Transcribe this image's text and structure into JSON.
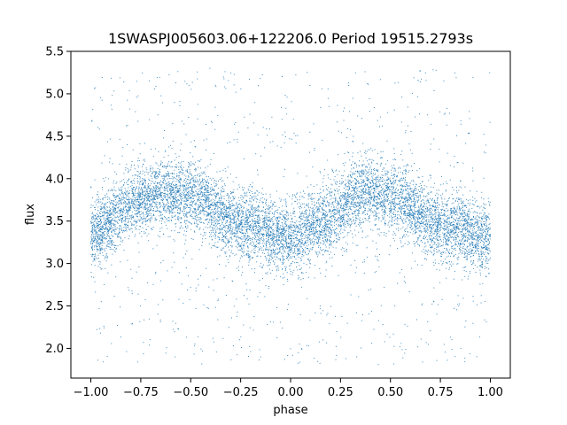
{
  "chart_data": {
    "type": "scatter",
    "title": "1SWASPJ005603.06+122206.0 Period 19515.2793s",
    "xlabel": "phase",
    "ylabel": "flux",
    "xlim": [
      -1.1,
      1.1
    ],
    "ylim": [
      1.65,
      5.5
    ],
    "x_ticks": [
      -1.0,
      -0.75,
      -0.5,
      -0.25,
      0.0,
      0.25,
      0.5,
      0.75,
      1.0
    ],
    "x_tick_labels": [
      "−1.00",
      "−0.75",
      "−0.50",
      "−0.25",
      "0.00",
      "0.25",
      "0.50",
      "0.75",
      "1.00"
    ],
    "y_ticks": [
      2.0,
      2.5,
      3.0,
      3.5,
      4.0,
      4.5,
      5.0,
      5.5
    ],
    "y_tick_labels": [
      "2.0",
      "2.5",
      "3.0",
      "3.5",
      "4.0",
      "4.5",
      "5.0",
      "5.5"
    ],
    "grid": false,
    "marker_color": "#1f77b4",
    "series": [
      {
        "x_range": [
          -1.0,
          1.0
        ],
        "mean_flux_curve": {
          "phase": [
            -1.0,
            -0.75,
            -0.625,
            -0.5,
            -0.25,
            0.0,
            0.125,
            0.375,
            0.5,
            0.75,
            1.0
          ],
          "flux": [
            3.35,
            3.75,
            3.85,
            3.78,
            3.45,
            3.3,
            3.45,
            3.85,
            3.78,
            3.45,
            3.3
          ]
        },
        "core_scatter": 0.2,
        "outlier_range": [
          1.8,
          5.3
        ]
      }
    ]
  }
}
